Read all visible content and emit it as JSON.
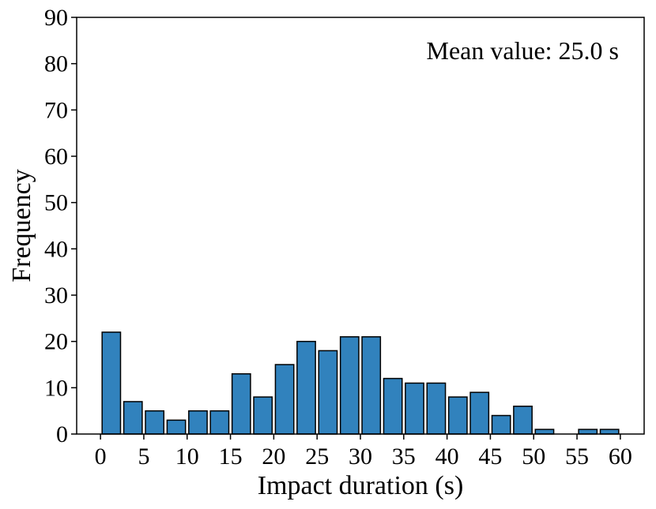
{
  "chart_data": {
    "type": "histogram",
    "xlabel": "Impact duration (s)",
    "ylabel": "Frequency",
    "annotation": "Mean value: 25.0 s",
    "bins": [
      0,
      2.5,
      5,
      7.5,
      10,
      12.5,
      15,
      17.5,
      20,
      22.5,
      25,
      27.5,
      30,
      32.5,
      35,
      37.5,
      40,
      42.5,
      45,
      47.5,
      50,
      52.5,
      55,
      57.5,
      60
    ],
    "values": [
      22,
      7,
      5,
      3,
      5,
      5,
      13,
      8,
      15,
      20,
      18,
      21,
      21,
      12,
      11,
      11,
      8,
      9,
      4,
      6,
      1,
      0,
      1,
      1
    ],
    "color": "#3182bd",
    "edgecolor": "#000000",
    "xlim": [
      -2.75,
      62.75
    ],
    "ylim": [
      0,
      90
    ],
    "xticks": [
      0,
      5,
      10,
      15,
      20,
      25,
      30,
      35,
      40,
      45,
      50,
      55,
      60
    ],
    "yticks": [
      0,
      10,
      20,
      30,
      40,
      50,
      60,
      70,
      80,
      90
    ]
  }
}
